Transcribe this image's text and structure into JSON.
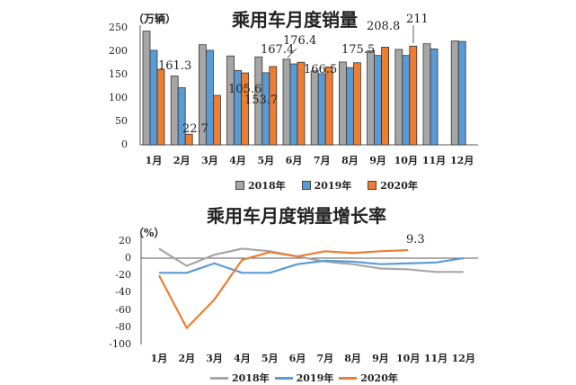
{
  "colors": {
    "s2018": "#a6a6a6",
    "s2019": "#5b9bd5",
    "s2020": "#ed7d31",
    "axis": "#595959",
    "bar_edge": "#333333"
  },
  "chart_data": [
    {
      "type": "bar",
      "title": "乘用车月度销量",
      "ylabel": "（万辆）",
      "xlabel": "",
      "ylim": [
        0,
        250
      ],
      "yticks": [
        250,
        200,
        150,
        100,
        50,
        0
      ],
      "categories": [
        "1月",
        "2月",
        "3月",
        "4月",
        "5月",
        "6月",
        "7月",
        "8月",
        "9月",
        "10月",
        "11月",
        "12月"
      ],
      "series": [
        {
          "name": "2018年",
          "values": [
            243,
            147,
            214,
            190,
            188,
            183,
            158,
            177,
            201,
            204,
            216,
            222
          ]
        },
        {
          "name": "2019年",
          "values": [
            202,
            122,
            202,
            159,
            154,
            173,
            152,
            165,
            191,
            191,
            205,
            221
          ]
        },
        {
          "name": "2020年",
          "values": [
            161.3,
            22.7,
            105.6,
            153.7,
            167.4,
            176.4,
            166.5,
            175.5,
            208.8,
            211,
            null,
            null
          ]
        }
      ],
      "data_labels": [
        "161.3",
        "22.7",
        "105.6",
        "153.7",
        "167.4",
        "176.4",
        "166.5",
        "175.5",
        "208.8",
        "211"
      ],
      "legend": [
        "2018年",
        "2019年",
        "2020年"
      ],
      "legend_position": "bottom",
      "grid": false
    },
    {
      "type": "line",
      "title": "乘用车月度销量增长率",
      "ylabel": "（%）",
      "xlabel": "",
      "ylim": [
        -100,
        20
      ],
      "yticks": [
        20,
        0,
        -20,
        -40,
        -60,
        -80,
        -100
      ],
      "categories": [
        "1月",
        "2月",
        "3月",
        "4月",
        "5月",
        "6月",
        "7月",
        "8月",
        "9月",
        "10月",
        "11月",
        "12月"
      ],
      "series": [
        {
          "name": "2018年",
          "values": [
            11,
            -9,
            4,
            11,
            8,
            2,
            -4,
            -7,
            -12,
            -13,
            -16,
            -16
          ]
        },
        {
          "name": "2019年",
          "values": [
            -17,
            -17,
            -6,
            -17,
            -17,
            -7,
            -3,
            -4,
            -7,
            -6,
            -5,
            0
          ]
        },
        {
          "name": "2020年",
          "values": [
            -20,
            -81,
            -48,
            -2,
            7,
            2,
            8,
            6,
            8,
            9.3,
            null,
            null
          ]
        }
      ],
      "data_labels": [
        "9.3"
      ],
      "legend": [
        "2018年",
        "2019年",
        "2020年"
      ],
      "legend_position": "bottom",
      "grid": false
    }
  ],
  "top": {
    "title": "乘用车月度销量",
    "unit": "（万辆）"
  },
  "bottom": {
    "title": "乘用车月度销量增长率",
    "unit": "（%）"
  },
  "legend": {
    "l2018": "2018年",
    "l2019": "2019年",
    "l2020": "2020年"
  }
}
